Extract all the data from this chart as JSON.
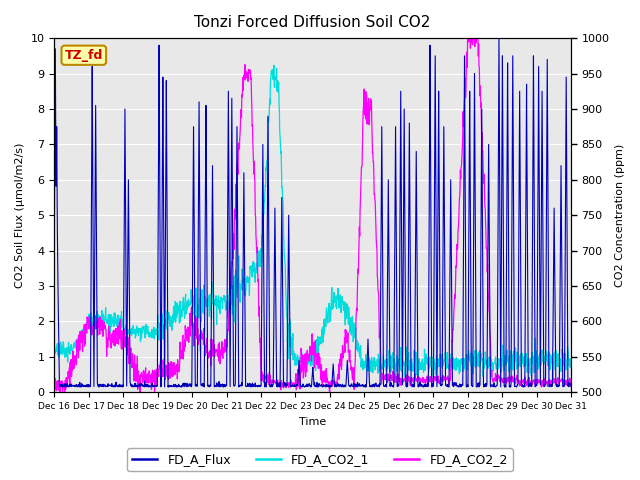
{
  "title": "Tonzi Forced Diffusion Soil CO2",
  "xlabel": "Time",
  "ylabel_left": "CO2 Soil Flux (μmol/m2/s)",
  "ylabel_right": "CO2 Concentration (ppm)",
  "ylim_left": [
    0.0,
    10.0
  ],
  "ylim_right": [
    500,
    1000
  ],
  "background_color": "#ffffff",
  "plot_bg_color": "#e8e8e8",
  "flux_color": "#0000bb",
  "co2_1_color": "#00dddd",
  "co2_2_color": "#ff00ff",
  "tag_text": "TZ_fd",
  "tag_bg": "#ffffaa",
  "tag_border": "#bb8800",
  "tag_text_color": "#cc0000",
  "xtick_labels": [
    "Dec 16",
    "Dec 17",
    "Dec 18",
    "Dec 19",
    "Dec 20",
    "Dec 21",
    "Dec 22",
    "Dec 23",
    "Dec 24",
    "Dec 25",
    "Dec 26",
    "Dec 27",
    "Dec 28",
    "Dec 29",
    "Dec 30",
    "Dec 31"
  ],
  "legend_labels": [
    "FD_A_Flux",
    "FD_A_CO2_1",
    "FD_A_CO2_2"
  ],
  "n_points": 1500,
  "seed": 42
}
